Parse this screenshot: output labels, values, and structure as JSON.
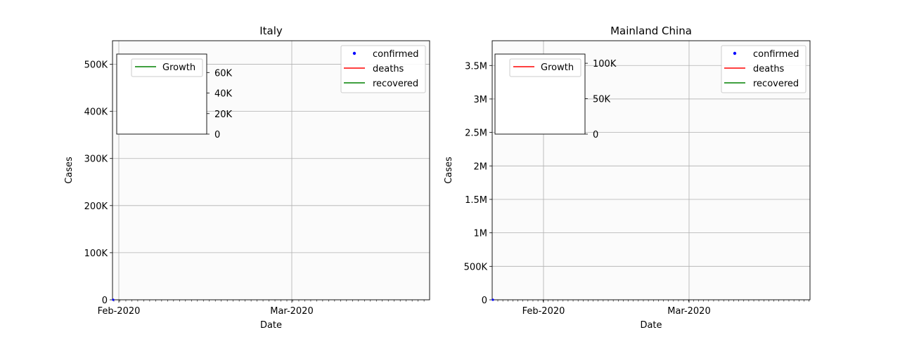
{
  "chart_data": [
    {
      "type": "line",
      "title": "Italy",
      "xlabel": "Date",
      "ylabel": "Cases",
      "x_ticks": [
        "Feb-2020",
        "Mar-2020"
      ],
      "y_ticks": [
        "0",
        "100K",
        "200K",
        "300K",
        "400K",
        "500K"
      ],
      "ylim": [
        0,
        550000
      ],
      "grid": true,
      "legend": {
        "placement": "upper right",
        "entries": [
          "confirmed",
          "deaths",
          "recovered"
        ]
      },
      "series": [
        {
          "name": "confirmed",
          "color": "#0000ff",
          "style": "points",
          "values": [
            0
          ]
        },
        {
          "name": "deaths",
          "color": "#ff0000",
          "style": "line",
          "values": [
            0
          ]
        },
        {
          "name": "recovered",
          "color": "#008000",
          "style": "line",
          "values": [
            0
          ]
        }
      ],
      "inset": {
        "legend": [
          {
            "name": "Growth",
            "color": "#008000"
          }
        ],
        "y_ticks": [
          "0",
          "20K",
          "40K",
          "60K"
        ],
        "ylim": [
          0,
          78000
        ]
      }
    },
    {
      "type": "line",
      "title": "Mainland China",
      "xlabel": "Date",
      "ylabel": "Cases",
      "x_ticks": [
        "Feb-2020",
        "Mar-2020"
      ],
      "y_ticks": [
        "0",
        "500K",
        "1M",
        "1.5M",
        "2M",
        "2.5M",
        "3M",
        "3.5M"
      ],
      "ylim": [
        0,
        3870000
      ],
      "grid": true,
      "legend": {
        "placement": "upper right",
        "entries": [
          "confirmed",
          "deaths",
          "recovered"
        ]
      },
      "series": [
        {
          "name": "confirmed",
          "color": "#0000ff",
          "style": "points",
          "values": [
            0
          ]
        },
        {
          "name": "deaths",
          "color": "#ff0000",
          "style": "line",
          "values": [
            0
          ]
        },
        {
          "name": "recovered",
          "color": "#008000",
          "style": "line",
          "values": [
            0
          ]
        }
      ],
      "inset": {
        "legend": [
          {
            "name": "Growth",
            "color": "#ff0000"
          }
        ],
        "y_ticks": [
          "0",
          "50K",
          "100K"
        ],
        "ylim": [
          0,
          113000
        ]
      }
    }
  ]
}
